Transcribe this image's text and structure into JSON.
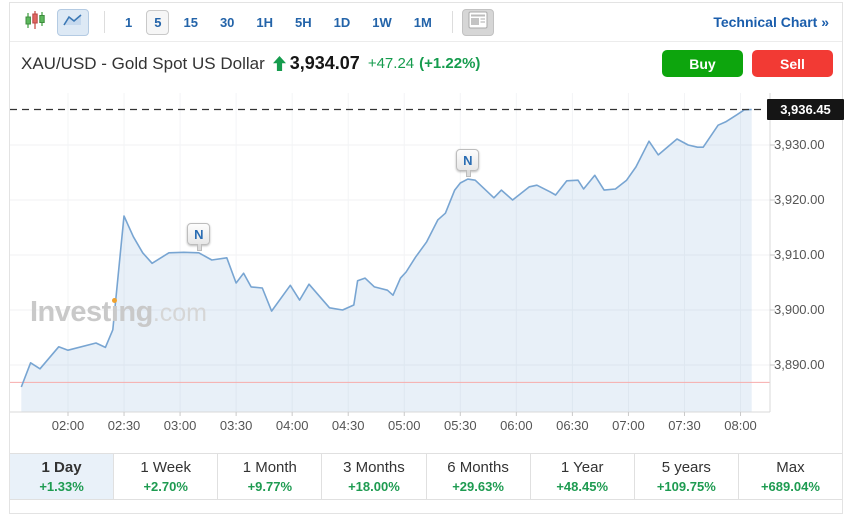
{
  "toolbar": {
    "icons": [
      "candlestick-chart",
      "area-chart",
      "news-panel"
    ],
    "intervals": [
      "1",
      "5",
      "15",
      "30",
      "1H",
      "5H",
      "1D",
      "1W",
      "1M"
    ],
    "selected_interval": "5",
    "technical_chart_label": "Technical Chart",
    "technical_chart_arrows": "»"
  },
  "header": {
    "title": "XAU/USD - Gold Spot US Dollar",
    "price": "3,934.07",
    "change": "+47.24",
    "change_pct": "(+1.22%)",
    "direction": "up",
    "buy_label": "Buy",
    "sell_label": "Sell"
  },
  "colors": {
    "buy_green": "#0da50d",
    "sell_red": "#f23a34",
    "link_blue": "#1b5eac",
    "change_green": "#169c4e",
    "line_blue": "#78a5d2",
    "prev_close_red": "#f7abab"
  },
  "watermark": {
    "pre": "Invest",
    "dotless_i": "ı",
    "post": "ng",
    "suffix": ".com"
  },
  "chart_data": {
    "type": "area",
    "title": "XAU/USD intraday (5-minute)",
    "grid": true,
    "x_ticks": [
      "02:00",
      "02:30",
      "03:00",
      "03:30",
      "04:00",
      "04:30",
      "05:00",
      "05:30",
      "06:00",
      "06:30",
      "07:00",
      "07:30",
      "08:00"
    ],
    "y_ticks": [
      {
        "label": "3,930.00",
        "value": 3930
      },
      {
        "label": "3,920.00",
        "value": 3920
      },
      {
        "label": "3,910.00",
        "value": 3910
      },
      {
        "label": "3,900.00",
        "value": 3900
      },
      {
        "label": "3,890.00",
        "value": 3890
      }
    ],
    "ylim": [
      3881.5,
      3943
    ],
    "last_price": 3936.45,
    "last_price_label": "3,936.45",
    "prev_close": 3886.83,
    "points_format": "[time, price]",
    "points": [
      [
        "01:35",
        3886.0
      ],
      [
        "01:40",
        3890.4
      ],
      [
        "01:45",
        3889.3
      ],
      [
        "01:55",
        3893.3
      ],
      [
        "02:00",
        3892.7
      ],
      [
        "02:15",
        3894.0
      ],
      [
        "02:20",
        3893.2
      ],
      [
        "02:24",
        3896.4
      ],
      [
        "02:30",
        3917.1
      ],
      [
        "02:35",
        3913.3
      ],
      [
        "02:40",
        3910.4
      ],
      [
        "02:45",
        3908.5
      ],
      [
        "02:54",
        3910.4
      ],
      [
        "03:02",
        3910.5
      ],
      [
        "03:10",
        3910.4
      ],
      [
        "03:17",
        3909.1
      ],
      [
        "03:25",
        3909.5
      ],
      [
        "03:30",
        3904.9
      ],
      [
        "03:34",
        3906.7
      ],
      [
        "03:38",
        3904.2
      ],
      [
        "03:44",
        3904.0
      ],
      [
        "03:49",
        3899.8
      ],
      [
        "03:59",
        3904.5
      ],
      [
        "04:04",
        3901.8
      ],
      [
        "04:09",
        3904.7
      ],
      [
        "04:20",
        3900.4
      ],
      [
        "04:27",
        3900.0
      ],
      [
        "04:33",
        3900.9
      ],
      [
        "04:35",
        3905.3
      ],
      [
        "04:39",
        3905.8
      ],
      [
        "04:44",
        3904.2
      ],
      [
        "04:51",
        3903.6
      ],
      [
        "04:54",
        3902.7
      ],
      [
        "04:58",
        3905.8
      ],
      [
        "05:01",
        3906.9
      ],
      [
        "05:06",
        3909.6
      ],
      [
        "05:12",
        3912.4
      ],
      [
        "05:18",
        3916.4
      ],
      [
        "05:22",
        3917.6
      ],
      [
        "05:27",
        3921.8
      ],
      [
        "05:30",
        3923.1
      ],
      [
        "05:34",
        3923.8
      ],
      [
        "05:38",
        3923.6
      ],
      [
        "05:48",
        3920.4
      ],
      [
        "05:52",
        3921.8
      ],
      [
        "05:58",
        3920.0
      ],
      [
        "06:07",
        3922.4
      ],
      [
        "06:11",
        3922.7
      ],
      [
        "06:18",
        3921.5
      ],
      [
        "06:21",
        3920.9
      ],
      [
        "06:27",
        3923.5
      ],
      [
        "06:33",
        3923.6
      ],
      [
        "06:36",
        3922.0
      ],
      [
        "06:42",
        3924.5
      ],
      [
        "06:47",
        3921.8
      ],
      [
        "06:53",
        3922.0
      ],
      [
        "06:59",
        3923.6
      ],
      [
        "07:04",
        3926.0
      ],
      [
        "07:11",
        3930.7
      ],
      [
        "07:16",
        3928.2
      ],
      [
        "07:26",
        3931.1
      ],
      [
        "07:32",
        3930.0
      ],
      [
        "07:37",
        3929.6
      ],
      [
        "07:40",
        3929.6
      ],
      [
        "07:48",
        3933.6
      ],
      [
        "07:52",
        3934.2
      ],
      [
        "07:58",
        3935.5
      ],
      [
        "08:02",
        3936.4
      ],
      [
        "08:06",
        3936.45
      ]
    ],
    "news_markers": [
      {
        "t": "03:10",
        "label": "N"
      },
      {
        "t": "05:34",
        "label": "N"
      }
    ]
  },
  "periods": [
    {
      "label": "1 Day",
      "change": "+1.33%",
      "selected": true
    },
    {
      "label": "1 Week",
      "change": "+2.70%",
      "selected": false
    },
    {
      "label": "1 Month",
      "change": "+9.77%",
      "selected": false
    },
    {
      "label": "3 Months",
      "change": "+18.00%",
      "selected": false
    },
    {
      "label": "6 Months",
      "change": "+29.63%",
      "selected": false
    },
    {
      "label": "1 Year",
      "change": "+48.45%",
      "selected": false
    },
    {
      "label": "5 years",
      "change": "+109.75%",
      "selected": false
    },
    {
      "label": "Max",
      "change": "+689.04%",
      "selected": false
    }
  ]
}
